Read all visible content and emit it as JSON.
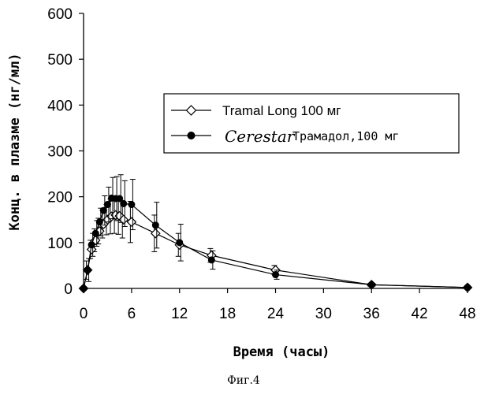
{
  "chart_data": {
    "type": "line",
    "title": "",
    "xlabel": "Время (часы)",
    "ylabel": "Конц. в плазме (нг/мл)",
    "xlim": [
      0,
      48
    ],
    "ylim": [
      0,
      600
    ],
    "xticks": [
      0,
      6,
      12,
      18,
      24,
      30,
      36,
      42,
      48
    ],
    "yticks": [
      0,
      100,
      200,
      300,
      400,
      500,
      600
    ],
    "grid": false,
    "legend_position": "upper-right",
    "series": [
      {
        "name": "Tramal Long 100 мг",
        "marker": "open-diamond",
        "x": [
          0,
          0.5,
          1,
          1.5,
          2,
          2.5,
          3,
          3.5,
          4,
          4.5,
          5,
          6,
          9,
          12,
          16,
          24,
          36,
          48
        ],
        "y": [
          0,
          40,
          85,
          105,
          125,
          140,
          150,
          157,
          160,
          158,
          150,
          145,
          120,
          95,
          72,
          40,
          8,
          2
        ],
        "err": [
          0,
          20,
          20,
          25,
          28,
          30,
          33,
          38,
          40,
          40,
          40,
          45,
          40,
          25,
          15,
          10,
          3,
          1
        ]
      },
      {
        "name": "Трамадол,100 мг",
        "name_prefix_handwritten": "Cerestar",
        "marker": "filled-circle",
        "x": [
          0,
          0.5,
          1,
          1.5,
          2,
          2.5,
          3,
          3.5,
          4,
          4.5,
          5,
          6,
          9,
          12,
          16,
          24,
          36,
          48
        ],
        "y": [
          0,
          40,
          95,
          120,
          145,
          170,
          183,
          197,
          196,
          196,
          185,
          183,
          138,
          100,
          62,
          30,
          8,
          2
        ],
        "err": [
          0,
          25,
          25,
          28,
          30,
          32,
          38,
          45,
          48,
          52,
          50,
          55,
          50,
          40,
          20,
          10,
          3,
          1
        ]
      }
    ]
  },
  "caption": "Фиг.4"
}
